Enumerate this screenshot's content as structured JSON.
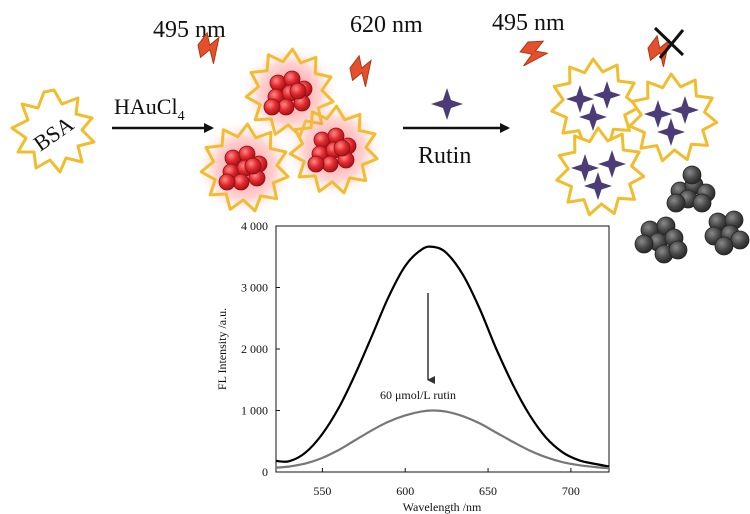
{
  "labels": {
    "excitation_left": "495 nm",
    "emission": "620 nm",
    "excitation_right": "495 nm",
    "bsa": "BSA",
    "reagent_main": "HAuCl",
    "reagent_sub": "4",
    "rutin": "Rutin"
  },
  "colors": {
    "burst_stroke": "#f1bd2e",
    "gold_nanocluster": "#e0292d",
    "glow": "#ff5a5a",
    "lightning": "#e4502b",
    "rutin_star": "#4b3c78",
    "aggregate": "#474747",
    "curve_initial": "#000000",
    "curve_quenched": "#777777"
  },
  "icons": [
    "lightning-icon",
    "star-icon",
    "cross-icon"
  ],
  "chart_data": {
    "type": "line",
    "xlabel": "Wavelength /nm",
    "ylabel": "FL Intensity /a.u.",
    "xlim": [
      522,
      723
    ],
    "ylim": [
      0,
      4000
    ],
    "xticks": [
      550,
      600,
      650,
      700
    ],
    "yticks": [
      0,
      1000,
      2000,
      3000,
      4000
    ],
    "ytick_labels": [
      "0",
      "1 000",
      "2 000",
      "3 000",
      "4 000"
    ],
    "annotation": "60 μmol/L rutin",
    "series": [
      {
        "x": [
          522,
          530,
          540,
          550,
          560,
          570,
          580,
          590,
          600,
          610,
          617,
          625,
          635,
          645,
          655,
          665,
          675,
          685,
          695,
          705,
          715,
          723
        ],
        "y": [
          180,
          175,
          320,
          620,
          1050,
          1600,
          2220,
          2850,
          3350,
          3620,
          3660,
          3560,
          3200,
          2650,
          2000,
          1420,
          930,
          560,
          320,
          190,
          130,
          90
        ]
      },
      {
        "x": [
          522,
          530,
          540,
          550,
          560,
          570,
          580,
          590,
          600,
          610,
          617,
          625,
          635,
          645,
          655,
          665,
          675,
          685,
          695,
          705,
          715,
          723
        ],
        "y": [
          70,
          90,
          140,
          230,
          360,
          520,
          680,
          820,
          920,
          985,
          1000,
          980,
          905,
          790,
          640,
          490,
          350,
          240,
          160,
          110,
          80,
          60
        ]
      }
    ]
  }
}
